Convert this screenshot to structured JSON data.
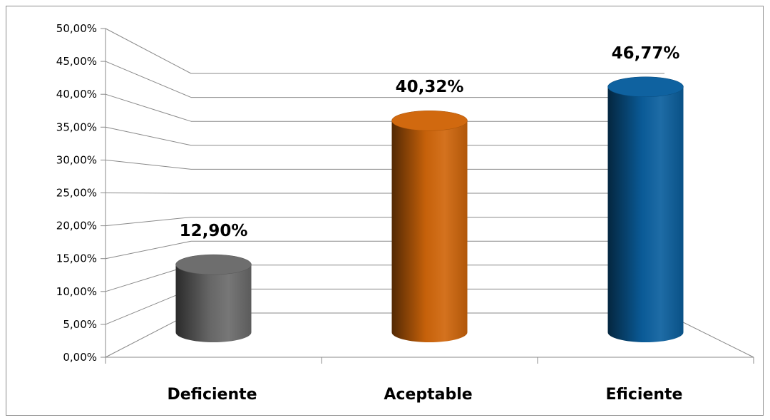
{
  "chart_data": {
    "type": "bar",
    "style": "3d-cylinder",
    "categories": [
      "Deficiente",
      "Aceptable",
      "Eficiente"
    ],
    "values": [
      12.9,
      40.32,
      46.77
    ],
    "data_labels": [
      "12,90%",
      "40,32%",
      "46,77%"
    ],
    "colors": [
      "#6b6b6b",
      "#d0660a",
      "#0a5f9e"
    ],
    "yticks": [
      "0,00%",
      "5,00%",
      "10,00%",
      "15,00%",
      "20,00%",
      "25,00%",
      "30,00%",
      "35,00%",
      "40,00%",
      "45,00%",
      "50,00%"
    ],
    "ylim": [
      0,
      50
    ],
    "grid": true,
    "legend": "none",
    "title": "",
    "xlabel": "",
    "ylabel": ""
  }
}
